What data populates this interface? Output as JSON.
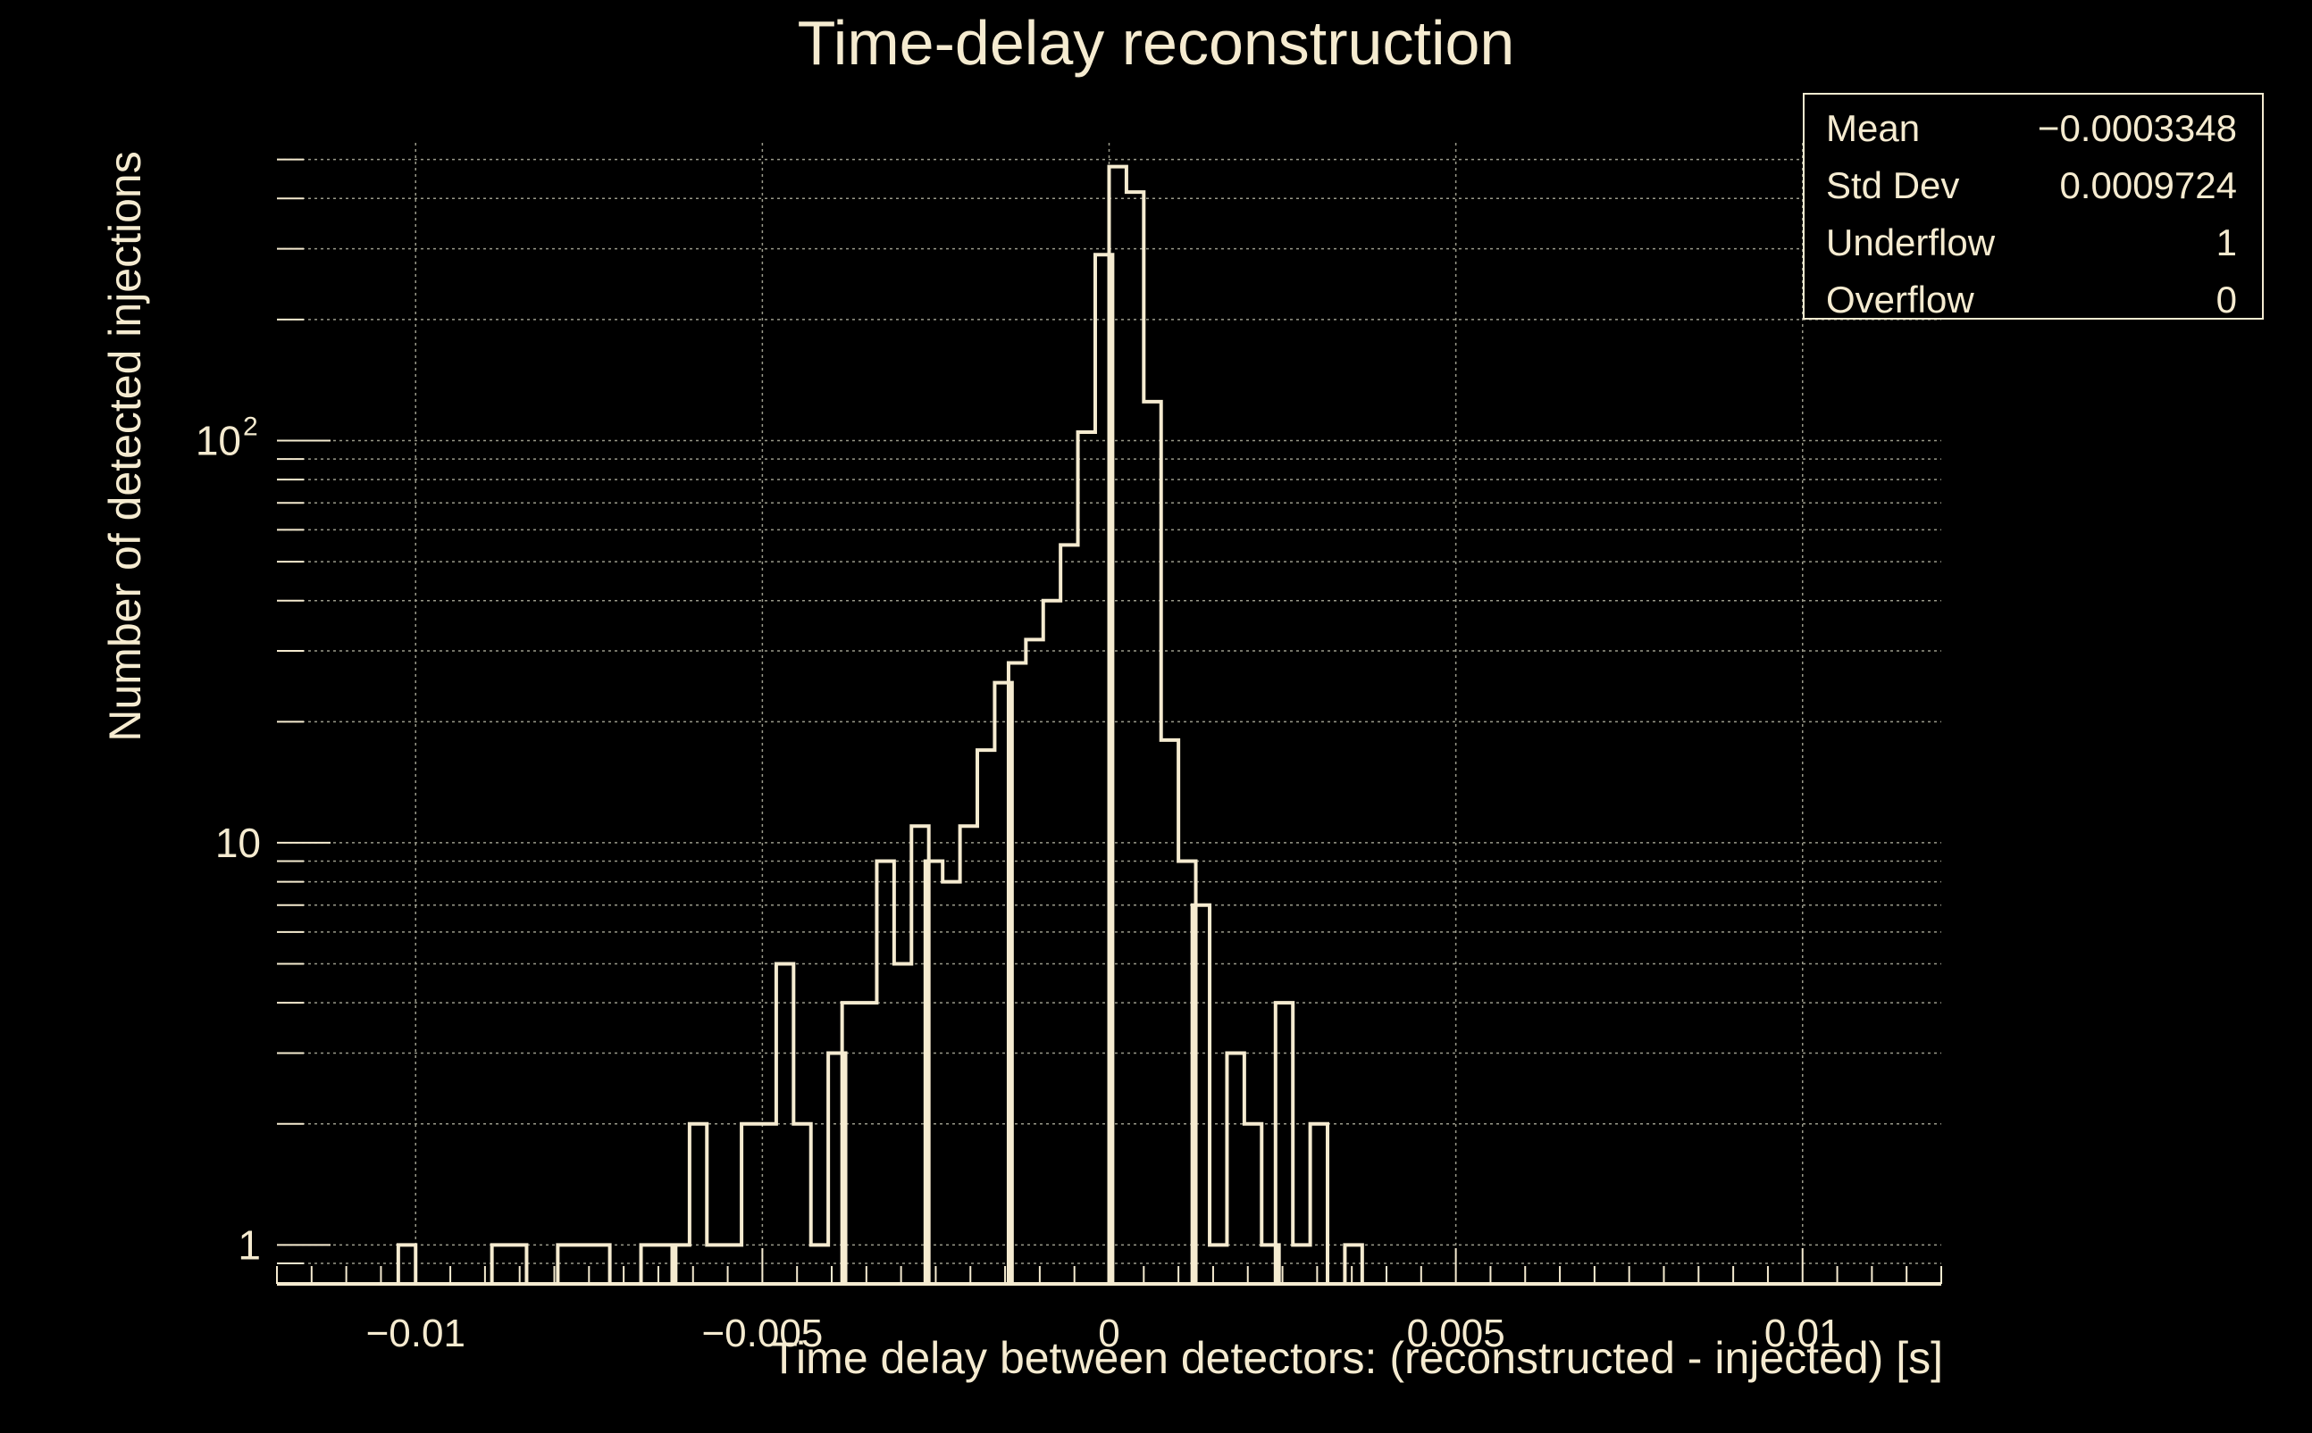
{
  "title": "Time-delay reconstruction",
  "colors": {
    "background": "#000000",
    "foreground": "#f5ebd0",
    "grid": "#9a9a8a"
  },
  "stats": [
    {
      "label": "Mean",
      "value": "−0.0003348"
    },
    {
      "label": "Std Dev",
      "value": "0.0009724"
    },
    {
      "label": "Underflow",
      "value": "1"
    },
    {
      "label": "Overflow",
      "value": "0"
    }
  ],
  "chart_data": {
    "type": "histogram",
    "xlabel": "Time delay between detectors: (reconstructed - injected) [s]",
    "ylabel": "Number of detected injections",
    "xlim": [
      -0.012,
      0.012
    ],
    "ylim": [
      0.8,
      550
    ],
    "yscale": "log",
    "grid": true,
    "bin_width": 0.00025,
    "xticks": [
      {
        "value": -0.01,
        "label": "−0.01"
      },
      {
        "value": -0.005,
        "label": "−0.005"
      },
      {
        "value": 0,
        "label": "0"
      },
      {
        "value": 0.005,
        "label": "0.005"
      },
      {
        "value": 0.01,
        "label": "0.01"
      }
    ],
    "yticks": [
      {
        "value": 1,
        "label": "1"
      },
      {
        "value": 10,
        "label": "10"
      },
      {
        "value": 100,
        "label": "10",
        "sup": "2"
      }
    ],
    "bins": [
      {
        "x": -0.01025,
        "count": 1
      },
      {
        "x": -0.0089,
        "count": 1
      },
      {
        "x": -0.00865,
        "count": 1
      },
      {
        "x": -0.00795,
        "count": 1
      },
      {
        "x": -0.0077,
        "count": 1
      },
      {
        "x": -0.00745,
        "count": 1
      },
      {
        "x": -0.00675,
        "count": 1
      },
      {
        "x": -0.0065,
        "count": 1
      },
      {
        "x": -0.0063,
        "count": 1
      },
      {
        "x": -0.00605,
        "count": 2
      },
      {
        "x": -0.0058,
        "count": 1
      },
      {
        "x": -0.00555,
        "count": 1
      },
      {
        "x": -0.0053,
        "count": 2
      },
      {
        "x": -0.00505,
        "count": 2
      },
      {
        "x": -0.0048,
        "count": 5
      },
      {
        "x": -0.00455,
        "count": 2
      },
      {
        "x": -0.0043,
        "count": 1
      },
      {
        "x": -0.00405,
        "count": 3
      },
      {
        "x": -0.00385,
        "count": 4
      },
      {
        "x": -0.0036,
        "count": 4
      },
      {
        "x": -0.00335,
        "count": 9
      },
      {
        "x": -0.0031,
        "count": 5
      },
      {
        "x": -0.00285,
        "count": 11
      },
      {
        "x": -0.00265,
        "count": 9
      },
      {
        "x": -0.0024,
        "count": 8
      },
      {
        "x": -0.00215,
        "count": 11
      },
      {
        "x": -0.0019,
        "count": 17
      },
      {
        "x": -0.00165,
        "count": 25
      },
      {
        "x": -0.00145,
        "count": 28
      },
      {
        "x": -0.0012,
        "count": 32
      },
      {
        "x": -0.00095,
        "count": 40
      },
      {
        "x": -0.0007,
        "count": 55
      },
      {
        "x": -0.00045,
        "count": 105
      },
      {
        "x": -0.0002,
        "count": 290
      },
      {
        "x": 0.0,
        "count": 480
      },
      {
        "x": 0.00025,
        "count": 415
      },
      {
        "x": 0.0005,
        "count": 125
      },
      {
        "x": 0.00075,
        "count": 18
      },
      {
        "x": 0.001,
        "count": 9
      },
      {
        "x": 0.0012,
        "count": 7
      },
      {
        "x": 0.00145,
        "count": 1
      },
      {
        "x": 0.0017,
        "count": 3
      },
      {
        "x": 0.00195,
        "count": 2
      },
      {
        "x": 0.0022,
        "count": 1
      },
      {
        "x": 0.0024,
        "count": 4
      },
      {
        "x": 0.00265,
        "count": 1
      },
      {
        "x": 0.0029,
        "count": 2
      },
      {
        "x": 0.0034,
        "count": 1
      }
    ]
  }
}
